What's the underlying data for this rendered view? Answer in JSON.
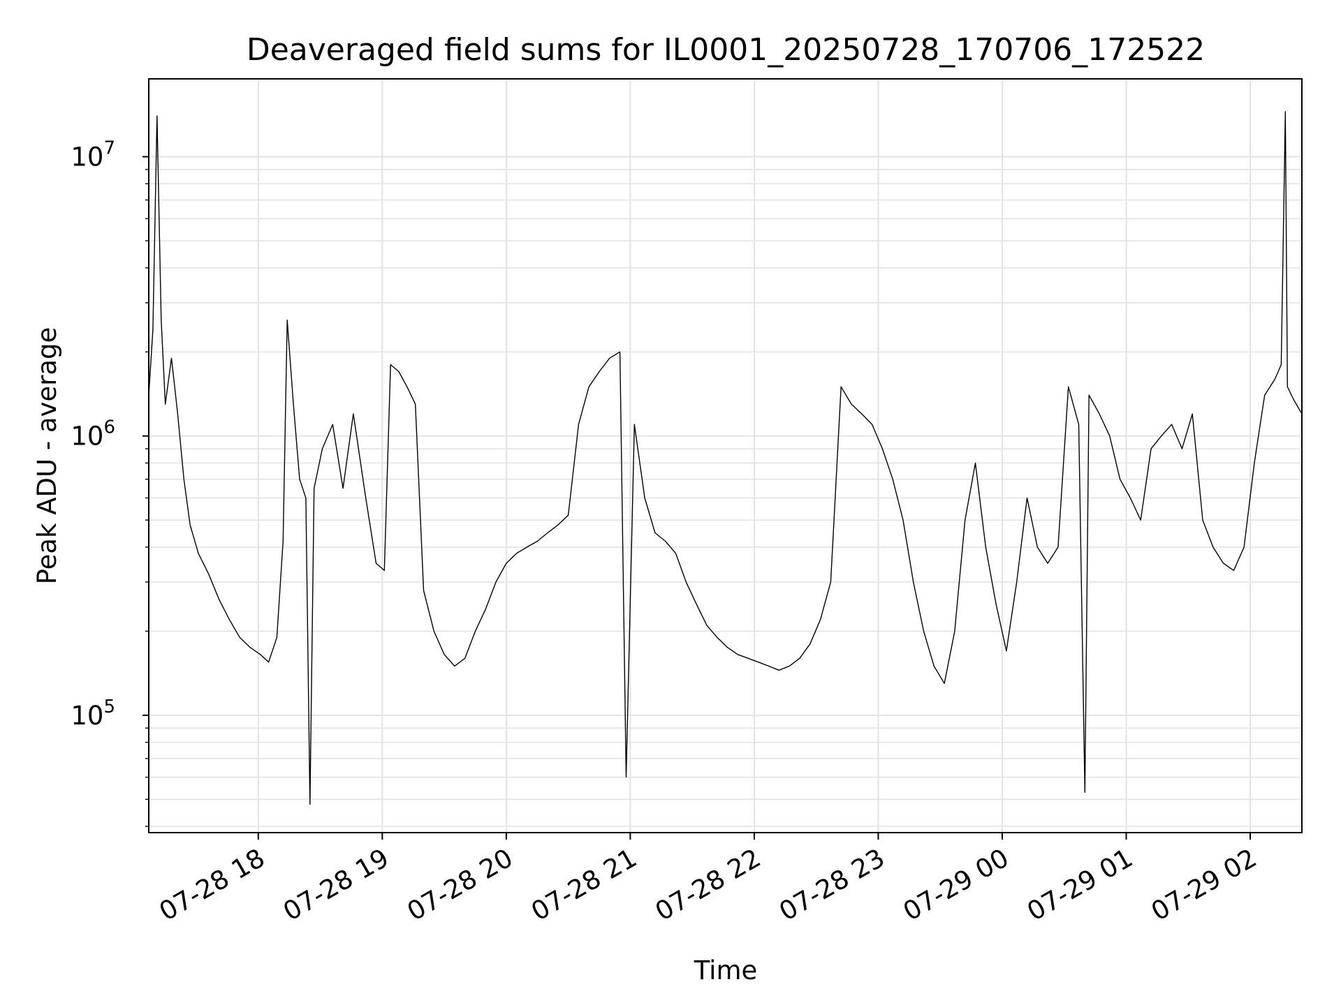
{
  "chart_data": {
    "type": "line",
    "title": "Deaveraged field sums for IL0001_20250728_170706_172522",
    "xlabel": "Time",
    "ylabel": "Peak ADU - average",
    "yscale": "log",
    "grid": true,
    "xlim": [
      "2025-07-28 17:07",
      "2025-07-29 02:25"
    ],
    "ylim": [
      38000,
      19000000
    ],
    "x_ticks": [
      "07-28 18",
      "07-28 19",
      "07-28 20",
      "07-28 21",
      "07-28 22",
      "07-28 23",
      "07-29 00",
      "07-29 01",
      "07-29 02"
    ],
    "y_ticks": [
      {
        "base": "10",
        "exp": "5",
        "value": 100000
      },
      {
        "base": "10",
        "exp": "6",
        "value": 1000000
      },
      {
        "base": "10",
        "exp": "7",
        "value": 10000000
      }
    ],
    "line_color": "#000000",
    "series": [
      {
        "points": [
          [
            "2025-07-28 17:07",
            1400000
          ],
          [
            "2025-07-28 17:09",
            2400000
          ],
          [
            "2025-07-28 17:11",
            14000000
          ],
          [
            "2025-07-28 17:13",
            2600000
          ],
          [
            "2025-07-28 17:15",
            1300000
          ],
          [
            "2025-07-28 17:18",
            1900000
          ],
          [
            "2025-07-28 17:21",
            1200000
          ],
          [
            "2025-07-28 17:24",
            700000
          ],
          [
            "2025-07-28 17:27",
            480000
          ],
          [
            "2025-07-28 17:31",
            380000
          ],
          [
            "2025-07-28 17:36",
            320000
          ],
          [
            "2025-07-28 17:41",
            260000
          ],
          [
            "2025-07-28 17:46",
            220000
          ],
          [
            "2025-07-28 17:51",
            190000
          ],
          [
            "2025-07-28 17:56",
            175000
          ],
          [
            "2025-07-28 18:01",
            165000
          ],
          [
            "2025-07-28 18:05",
            155000
          ],
          [
            "2025-07-28 18:09",
            190000
          ],
          [
            "2025-07-28 18:12",
            420000
          ],
          [
            "2025-07-28 18:14",
            2600000
          ],
          [
            "2025-07-28 18:17",
            1300000
          ],
          [
            "2025-07-28 18:20",
            700000
          ],
          [
            "2025-07-28 18:23",
            600000
          ],
          [
            "2025-07-28 18:25",
            48000
          ],
          [
            "2025-07-28 18:27",
            650000
          ],
          [
            "2025-07-28 18:31",
            900000
          ],
          [
            "2025-07-28 18:36",
            1100000
          ],
          [
            "2025-07-28 18:41",
            650000
          ],
          [
            "2025-07-28 18:46",
            1200000
          ],
          [
            "2025-07-28 18:52",
            600000
          ],
          [
            "2025-07-28 18:57",
            350000
          ],
          [
            "2025-07-28 19:01",
            330000
          ],
          [
            "2025-07-28 19:04",
            1800000
          ],
          [
            "2025-07-28 19:08",
            1700000
          ],
          [
            "2025-07-28 19:12",
            1500000
          ],
          [
            "2025-07-28 19:16",
            1300000
          ],
          [
            "2025-07-28 19:20",
            280000
          ],
          [
            "2025-07-28 19:25",
            200000
          ],
          [
            "2025-07-28 19:30",
            165000
          ],
          [
            "2025-07-28 19:35",
            150000
          ],
          [
            "2025-07-28 19:40",
            160000
          ],
          [
            "2025-07-28 19:45",
            200000
          ],
          [
            "2025-07-28 19:50",
            240000
          ],
          [
            "2025-07-28 19:55",
            300000
          ],
          [
            "2025-07-28 20:00",
            350000
          ],
          [
            "2025-07-28 20:05",
            380000
          ],
          [
            "2025-07-28 20:10",
            400000
          ],
          [
            "2025-07-28 20:15",
            420000
          ],
          [
            "2025-07-28 20:20",
            450000
          ],
          [
            "2025-07-28 20:25",
            480000
          ],
          [
            "2025-07-28 20:30",
            520000
          ],
          [
            "2025-07-28 20:35",
            1100000
          ],
          [
            "2025-07-28 20:40",
            1500000
          ],
          [
            "2025-07-28 20:45",
            1700000
          ],
          [
            "2025-07-28 20:50",
            1900000
          ],
          [
            "2025-07-28 20:55",
            2000000
          ],
          [
            "2025-07-28 20:58",
            60000
          ],
          [
            "2025-07-28 21:02",
            1100000
          ],
          [
            "2025-07-28 21:07",
            600000
          ],
          [
            "2025-07-28 21:12",
            450000
          ],
          [
            "2025-07-28 21:17",
            420000
          ],
          [
            "2025-07-28 21:22",
            380000
          ],
          [
            "2025-07-28 21:27",
            300000
          ],
          [
            "2025-07-28 21:32",
            250000
          ],
          [
            "2025-07-28 21:37",
            210000
          ],
          [
            "2025-07-28 21:42",
            190000
          ],
          [
            "2025-07-28 21:47",
            175000
          ],
          [
            "2025-07-28 21:52",
            165000
          ],
          [
            "2025-07-28 21:57",
            160000
          ],
          [
            "2025-07-28 22:02",
            155000
          ],
          [
            "2025-07-28 22:07",
            150000
          ],
          [
            "2025-07-28 22:12",
            145000
          ],
          [
            "2025-07-28 22:17",
            150000
          ],
          [
            "2025-07-28 22:22",
            160000
          ],
          [
            "2025-07-28 22:27",
            180000
          ],
          [
            "2025-07-28 22:32",
            220000
          ],
          [
            "2025-07-28 22:37",
            300000
          ],
          [
            "2025-07-28 22:42",
            1500000
          ],
          [
            "2025-07-28 22:47",
            1300000
          ],
          [
            "2025-07-28 22:52",
            1200000
          ],
          [
            "2025-07-28 22:57",
            1100000
          ],
          [
            "2025-07-28 23:02",
            900000
          ],
          [
            "2025-07-28 23:07",
            700000
          ],
          [
            "2025-07-28 23:12",
            500000
          ],
          [
            "2025-07-28 23:17",
            300000
          ],
          [
            "2025-07-28 23:22",
            200000
          ],
          [
            "2025-07-28 23:27",
            150000
          ],
          [
            "2025-07-28 23:32",
            130000
          ],
          [
            "2025-07-28 23:37",
            200000
          ],
          [
            "2025-07-28 23:42",
            500000
          ],
          [
            "2025-07-28 23:47",
            800000
          ],
          [
            "2025-07-28 23:52",
            400000
          ],
          [
            "2025-07-28 23:57",
            250000
          ],
          [
            "2025-07-29 00:02",
            170000
          ],
          [
            "2025-07-29 00:07",
            300000
          ],
          [
            "2025-07-29 00:12",
            600000
          ],
          [
            "2025-07-29 00:17",
            400000
          ],
          [
            "2025-07-29 00:22",
            350000
          ],
          [
            "2025-07-29 00:27",
            400000
          ],
          [
            "2025-07-29 00:32",
            1500000
          ],
          [
            "2025-07-29 00:37",
            1100000
          ],
          [
            "2025-07-29 00:40",
            53000
          ],
          [
            "2025-07-29 00:42",
            1400000
          ],
          [
            "2025-07-29 00:47",
            1200000
          ],
          [
            "2025-07-29 00:52",
            1000000
          ],
          [
            "2025-07-29 00:57",
            700000
          ],
          [
            "2025-07-29 01:02",
            600000
          ],
          [
            "2025-07-29 01:07",
            500000
          ],
          [
            "2025-07-29 01:12",
            900000
          ],
          [
            "2025-07-29 01:17",
            1000000
          ],
          [
            "2025-07-29 01:22",
            1100000
          ],
          [
            "2025-07-29 01:27",
            900000
          ],
          [
            "2025-07-29 01:32",
            1200000
          ],
          [
            "2025-07-29 01:37",
            500000
          ],
          [
            "2025-07-29 01:42",
            400000
          ],
          [
            "2025-07-29 01:47",
            350000
          ],
          [
            "2025-07-29 01:52",
            330000
          ],
          [
            "2025-07-29 01:57",
            400000
          ],
          [
            "2025-07-29 02:02",
            800000
          ],
          [
            "2025-07-29 02:07",
            1400000
          ],
          [
            "2025-07-29 02:12",
            1600000
          ],
          [
            "2025-07-29 02:15",
            1800000
          ],
          [
            "2025-07-29 02:17",
            14500000
          ],
          [
            "2025-07-29 02:18",
            1500000
          ],
          [
            "2025-07-29 02:21",
            1350000
          ],
          [
            "2025-07-29 02:25",
            1200000
          ]
        ]
      }
    ]
  }
}
